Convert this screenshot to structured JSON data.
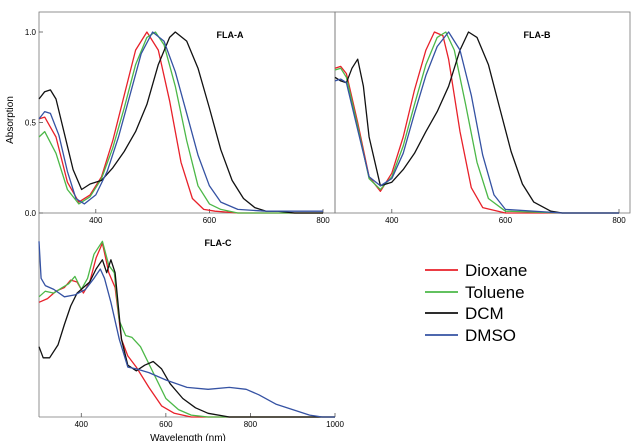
{
  "colors": {
    "Dioxane": "#e8212a",
    "Toluene": "#4cb848",
    "DCM": "#111111",
    "DMSO": "#3552a3"
  },
  "legend": {
    "placement": "right",
    "entries": [
      "Dioxane",
      "Toluene",
      "DCM",
      "DMSO"
    ]
  },
  "ylabel": "Absorption",
  "xlabel": "Wavelength (nm)",
  "chart_data": [
    {
      "type": "line",
      "title": "FLA-A",
      "xlim": [
        300,
        800
      ],
      "ylim": [
        0,
        1.0
      ],
      "xticks": [
        400,
        600,
        800
      ],
      "yticks": [
        0.0,
        0.5,
        1.0
      ],
      "ylabel": "Absorption",
      "series": [
        {
          "name": "Dioxane",
          "x": [
            300,
            310,
            330,
            350,
            370,
            390,
            410,
            430,
            450,
            470,
            490,
            510,
            530,
            550,
            570,
            590,
            610,
            650,
            700,
            800
          ],
          "values": [
            0.52,
            0.53,
            0.42,
            0.17,
            0.06,
            0.1,
            0.2,
            0.4,
            0.65,
            0.9,
            1.0,
            0.9,
            0.62,
            0.28,
            0.08,
            0.02,
            0.01,
            0.0,
            0.0,
            0.0
          ]
        },
        {
          "name": "Toluene",
          "x": [
            300,
            310,
            330,
            350,
            370,
            390,
            410,
            430,
            450,
            470,
            490,
            505,
            520,
            540,
            560,
            580,
            600,
            620,
            650,
            700,
            800
          ],
          "values": [
            0.42,
            0.45,
            0.33,
            0.13,
            0.05,
            0.09,
            0.19,
            0.36,
            0.58,
            0.82,
            0.97,
            1.0,
            0.93,
            0.7,
            0.4,
            0.15,
            0.05,
            0.02,
            0.0,
            0.0,
            0.0
          ]
        },
        {
          "name": "DCM",
          "x": [
            300,
            310,
            320,
            330,
            340,
            360,
            375,
            390,
            410,
            430,
            450,
            470,
            490,
            510,
            530,
            540,
            560,
            580,
            600,
            620,
            640,
            660,
            680,
            700,
            720,
            750,
            800
          ],
          "values": [
            0.63,
            0.67,
            0.68,
            0.63,
            0.5,
            0.24,
            0.13,
            0.16,
            0.18,
            0.25,
            0.34,
            0.45,
            0.6,
            0.82,
            0.97,
            1.0,
            0.95,
            0.8,
            0.58,
            0.35,
            0.18,
            0.08,
            0.03,
            0.01,
            0.01,
            0.0,
            0.0
          ]
        },
        {
          "name": "DMSO",
          "x": [
            300,
            310,
            320,
            335,
            350,
            365,
            380,
            400,
            420,
            440,
            460,
            480,
            500,
            520,
            540,
            560,
            580,
            600,
            620,
            650,
            700,
            800
          ],
          "values": [
            0.52,
            0.56,
            0.55,
            0.43,
            0.23,
            0.08,
            0.05,
            0.1,
            0.23,
            0.42,
            0.65,
            0.88,
            1.0,
            0.95,
            0.78,
            0.55,
            0.32,
            0.15,
            0.06,
            0.02,
            0.01,
            0.01
          ]
        }
      ]
    },
    {
      "type": "line",
      "title": "FLA-B",
      "xlim": [
        300,
        800
      ],
      "ylim": [
        0,
        1.0
      ],
      "xticks": [
        400,
        600,
        800
      ],
      "yticks": [],
      "series": [
        {
          "name": "Dioxane",
          "x": [
            300,
            310,
            320,
            340,
            360,
            380,
            400,
            420,
            440,
            460,
            475,
            490,
            500,
            520,
            540,
            560,
            600,
            700,
            800
          ],
          "values": [
            0.8,
            0.81,
            0.77,
            0.5,
            0.2,
            0.12,
            0.22,
            0.42,
            0.68,
            0.9,
            1.0,
            0.98,
            0.85,
            0.45,
            0.14,
            0.03,
            0.0,
            0.0,
            0.0
          ]
        },
        {
          "name": "Toluene",
          "x": [
            300,
            310,
            320,
            340,
            360,
            380,
            400,
            420,
            440,
            460,
            480,
            495,
            510,
            530,
            550,
            570,
            600,
            700,
            800
          ],
          "values": [
            0.79,
            0.8,
            0.75,
            0.48,
            0.19,
            0.13,
            0.2,
            0.37,
            0.6,
            0.82,
            0.97,
            1.0,
            0.9,
            0.6,
            0.28,
            0.08,
            0.01,
            0.0,
            0.0
          ]
        },
        {
          "name": "DCM",
          "x": [
            300,
            310,
            320,
            330,
            340,
            350,
            360,
            380,
            400,
            420,
            440,
            460,
            480,
            500,
            520,
            535,
            550,
            570,
            590,
            610,
            630,
            650,
            680,
            700,
            800
          ],
          "values": [
            0.75,
            0.73,
            0.72,
            0.8,
            0.85,
            0.7,
            0.42,
            0.15,
            0.17,
            0.24,
            0.33,
            0.45,
            0.56,
            0.7,
            0.9,
            1.0,
            0.97,
            0.82,
            0.58,
            0.34,
            0.16,
            0.06,
            0.01,
            0.0,
            0.0
          ]
        },
        {
          "name": "DMSO",
          "x": [
            300,
            310,
            320,
            340,
            360,
            380,
            400,
            420,
            440,
            460,
            480,
            500,
            520,
            540,
            560,
            580,
            600,
            700,
            800
          ],
          "values": [
            0.73,
            0.74,
            0.72,
            0.46,
            0.2,
            0.15,
            0.19,
            0.33,
            0.55,
            0.76,
            0.92,
            1.0,
            0.9,
            0.65,
            0.32,
            0.1,
            0.02,
            0.0,
            0.0
          ]
        }
      ]
    },
    {
      "type": "line",
      "title": "FLA-C",
      "xlim": [
        300,
        1000
      ],
      "ylim": [
        0,
        1.0
      ],
      "xticks": [
        400,
        600,
        800,
        1000
      ],
      "yticks": [],
      "series": [
        {
          "name": "Dioxane",
          "x": [
            300,
            320,
            340,
            360,
            375,
            390,
            405,
            420,
            435,
            450,
            465,
            480,
            495,
            510,
            530,
            560,
            590,
            620,
            660,
            700,
            800,
            1000
          ],
          "values": [
            0.62,
            0.64,
            0.68,
            0.7,
            0.74,
            0.73,
            0.67,
            0.73,
            0.86,
            0.94,
            0.78,
            0.7,
            0.42,
            0.33,
            0.27,
            0.16,
            0.06,
            0.02,
            0.0,
            0.0,
            0.0,
            0.0
          ]
        },
        {
          "name": "Toluene",
          "x": [
            300,
            315,
            335,
            355,
            370,
            385,
            400,
            415,
            430,
            450,
            465,
            478,
            490,
            505,
            520,
            540,
            570,
            600,
            630,
            660,
            700,
            800,
            1000
          ],
          "values": [
            0.65,
            0.68,
            0.67,
            0.7,
            0.72,
            0.76,
            0.69,
            0.75,
            0.88,
            0.95,
            0.82,
            0.78,
            0.52,
            0.44,
            0.43,
            0.38,
            0.24,
            0.1,
            0.04,
            0.01,
            0.0,
            0.0,
            0.0
          ]
        },
        {
          "name": "DCM",
          "x": [
            300,
            310,
            325,
            345,
            360,
            375,
            390,
            405,
            420,
            435,
            450,
            460,
            470,
            480,
            495,
            510,
            530,
            550,
            570,
            590,
            610,
            640,
            670,
            700,
            750,
            800,
            1000
          ],
          "values": [
            0.38,
            0.32,
            0.32,
            0.39,
            0.5,
            0.6,
            0.67,
            0.7,
            0.73,
            0.8,
            0.85,
            0.78,
            0.85,
            0.78,
            0.42,
            0.28,
            0.25,
            0.28,
            0.3,
            0.26,
            0.18,
            0.1,
            0.05,
            0.02,
            0.0,
            0.0,
            0.0
          ]
        },
        {
          "name": "DMSO",
          "x": [
            300,
            305,
            315,
            335,
            360,
            385,
            410,
            430,
            445,
            455,
            470,
            490,
            510,
            530,
            560,
            600,
            650,
            700,
            750,
            790,
            820,
            860,
            900,
            940,
            970,
            1000
          ],
          "values": [
            0.95,
            0.75,
            0.71,
            0.69,
            0.65,
            0.66,
            0.69,
            0.75,
            0.8,
            0.75,
            0.62,
            0.42,
            0.27,
            0.26,
            0.24,
            0.2,
            0.16,
            0.15,
            0.16,
            0.15,
            0.12,
            0.07,
            0.04,
            0.01,
            0.0,
            0.0
          ]
        }
      ]
    }
  ]
}
